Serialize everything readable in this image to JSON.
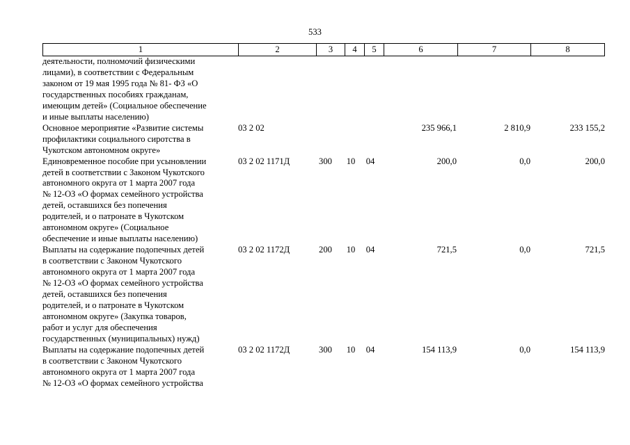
{
  "page_number": "533",
  "header": [
    "1",
    "2",
    "3",
    "4",
    "5",
    "6",
    "7",
    "8"
  ],
  "rows": [
    {
      "name": "деятельности, полномочий физическими\nлицами), в соответствии с Федеральным\nзаконом от 19 мая 1995 года № 81- ФЗ «О\nгосударственных пособиях гражданам,\nимеющим детей» (Социальное обеспечение\nи иные выплаты населению)",
      "code": "",
      "vr": "",
      "rz": "",
      "pr": "",
      "c6": "",
      "c7": "",
      "c8": ""
    },
    {
      "name": "Основное мероприятие «Развитие системы\nпрофилактики социального сиротства в\nЧукотском автономном округе»",
      "code": "03 2 02",
      "vr": "",
      "rz": "",
      "pr": "",
      "c6": "235 966,1",
      "c7": "2 810,9",
      "c8": "233 155,2"
    },
    {
      "name": "Единовременное пособие при усыновлении\nдетей в соответствии с Законом Чукотского\nавтономного округа от 1 марта 2007 года\n№ 12-ОЗ «О формах семейного устройства\nдетей, оставшихся без попечения\nродителей, и о патронате в Чукотском\nавтономном округе» (Социальное\nобеспечение и иные выплаты населению)",
      "code": "03 2 02 1171Д",
      "vr": "300",
      "rz": "10",
      "pr": "04",
      "c6": "200,0",
      "c7": "0,0",
      "c8": "200,0"
    },
    {
      "name": "Выплаты на содержание подопечных детей\nв соответствии с Законом Чукотского\nавтономного округа от 1 марта 2007 года\n№ 12-ОЗ «О формах семейного устройства\nдетей, оставшихся без попечения\nродителей, и о патронате в Чукотском\nавтономном округе» (Закупка товаров,\nработ и услуг для обеспечения\nгосударственных (муниципальных) нужд)",
      "code": "03 2 02 1172Д",
      "vr": "200",
      "rz": "10",
      "pr": "04",
      "c6": "721,5",
      "c7": "0,0",
      "c8": "721,5"
    },
    {
      "name": "Выплаты на содержание подопечных детей\nв соответствии с Законом Чукотского\nавтономного округа от 1 марта 2007 года\n№ 12-ОЗ «О формах семейного устройства",
      "code": "03 2 02 1172Д",
      "vr": "300",
      "rz": "10",
      "pr": "04",
      "c6": "154 113,9",
      "c7": "0,0",
      "c8": "154 113,9"
    }
  ]
}
